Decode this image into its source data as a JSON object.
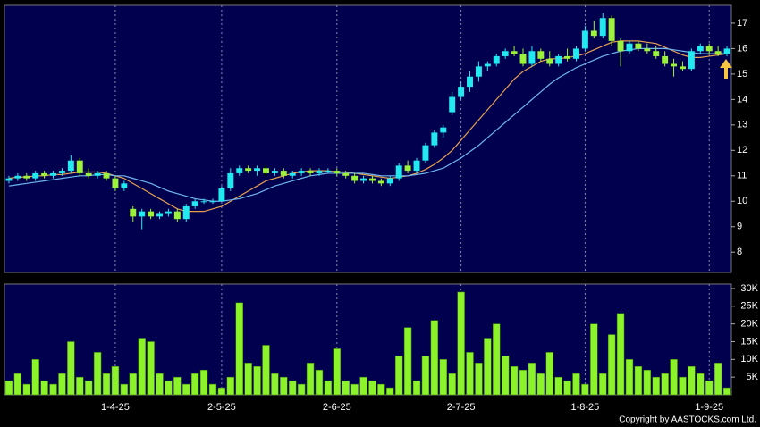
{
  "chart_data": [
    {
      "type": "candlestick",
      "categories": [
        null,
        null,
        null,
        null,
        null,
        null,
        null,
        null,
        null,
        null,
        null,
        null,
        "1-4-25",
        null,
        null,
        null,
        null,
        null,
        null,
        null,
        null,
        null,
        null,
        null,
        "2-5-25",
        null,
        null,
        null,
        null,
        null,
        null,
        null,
        null,
        null,
        null,
        null,
        null,
        "2-6-25",
        null,
        null,
        null,
        null,
        null,
        null,
        null,
        null,
        null,
        null,
        null,
        null,
        null,
        "2-7-25",
        null,
        null,
        null,
        null,
        null,
        null,
        null,
        null,
        null,
        null,
        null,
        null,
        null,
        "1-8-25",
        null,
        null,
        null,
        null,
        null,
        null,
        null,
        null,
        null,
        null,
        null,
        null,
        null,
        "1-9-25",
        null,
        null
      ],
      "open": [
        10.8,
        10.9,
        11.0,
        10.9,
        11.1,
        11.0,
        11.1,
        11.2,
        11.6,
        11.1,
        11.0,
        11.1,
        10.9,
        10.5,
        9.7,
        9.4,
        9.6,
        9.4,
        9.5,
        9.6,
        9.3,
        9.8,
        10.0,
        10.0,
        10.0,
        10.5,
        11.1,
        11.3,
        11.2,
        11.3,
        11.1,
        11.2,
        11.0,
        11.1,
        11.2,
        11.1,
        11.2,
        11.2,
        11.1,
        11.0,
        10.8,
        10.9,
        10.8,
        10.7,
        10.9,
        11.4,
        11.2,
        11.6,
        12.2,
        12.7,
        13.5,
        14.1,
        14.5,
        14.9,
        15.3,
        15.4,
        15.7,
        15.9,
        15.8,
        15.4,
        15.9,
        15.6,
        15.4,
        15.7,
        15.6,
        16.0,
        16.7,
        16.5,
        17.2,
        16.3,
        15.9,
        16.2,
        16.0,
        15.9,
        15.7,
        15.4,
        15.3,
        15.2,
        15.9,
        16.1,
        15.9,
        15.8
      ],
      "high": [
        11.0,
        11.1,
        11.1,
        11.2,
        11.2,
        11.2,
        11.3,
        11.8,
        11.7,
        11.3,
        11.2,
        11.2,
        11.0,
        10.8,
        9.8,
        9.7,
        9.7,
        9.6,
        9.7,
        9.7,
        9.9,
        10.1,
        10.1,
        10.1,
        10.6,
        11.3,
        11.4,
        11.4,
        11.4,
        11.4,
        11.3,
        11.3,
        11.2,
        11.3,
        11.3,
        11.3,
        11.3,
        11.3,
        11.2,
        11.1,
        11.0,
        11.0,
        10.9,
        11.0,
        11.5,
        11.6,
        11.7,
        12.3,
        12.8,
        13.0,
        14.3,
        14.7,
        15.1,
        15.5,
        15.5,
        15.8,
        16.0,
        16.1,
        16.0,
        16.1,
        16.0,
        15.9,
        15.8,
        16.0,
        16.1,
        16.9,
        17.1,
        17.4,
        17.3,
        16.4,
        16.3,
        16.3,
        16.2,
        16.1,
        15.9,
        15.6,
        15.5,
        16.0,
        16.2,
        16.2,
        16.1,
        16.1
      ],
      "low": [
        10.7,
        10.8,
        10.8,
        10.8,
        10.9,
        10.9,
        11.0,
        11.1,
        11.0,
        10.9,
        10.9,
        10.8,
        10.4,
        10.4,
        9.2,
        8.9,
        9.3,
        9.3,
        9.4,
        9.2,
        9.2,
        9.7,
        9.9,
        9.9,
        10.0,
        10.4,
        11.0,
        11.1,
        11.0,
        11.0,
        11.0,
        10.9,
        10.9,
        11.0,
        11.0,
        11.0,
        11.1,
        11.0,
        10.9,
        10.7,
        10.7,
        10.7,
        10.6,
        10.6,
        10.8,
        11.1,
        11.1,
        11.5,
        12.1,
        12.5,
        13.4,
        14.0,
        14.3,
        14.7,
        15.1,
        15.3,
        15.6,
        15.7,
        15.3,
        15.3,
        15.5,
        15.3,
        15.3,
        15.5,
        15.5,
        15.9,
        16.4,
        16.4,
        16.1,
        15.3,
        15.8,
        15.9,
        15.8,
        15.6,
        15.3,
        14.9,
        15.1,
        15.1,
        15.8,
        15.8,
        15.7,
        15.7
      ],
      "close": [
        10.9,
        11.0,
        10.9,
        11.1,
        11.0,
        11.1,
        11.2,
        11.6,
        11.1,
        11.0,
        11.1,
        10.9,
        10.5,
        10.7,
        9.4,
        9.6,
        9.4,
        9.5,
        9.6,
        9.3,
        9.8,
        10.0,
        10.0,
        10.0,
        10.5,
        11.1,
        11.3,
        11.2,
        11.3,
        11.1,
        11.2,
        11.0,
        11.1,
        11.2,
        11.1,
        11.2,
        11.2,
        11.1,
        11.0,
        10.8,
        10.9,
        10.8,
        10.7,
        10.9,
        11.4,
        11.2,
        11.6,
        12.2,
        12.7,
        12.9,
        14.1,
        14.5,
        14.9,
        15.3,
        15.4,
        15.7,
        15.9,
        15.8,
        15.4,
        15.9,
        15.6,
        15.4,
        15.7,
        15.6,
        16.0,
        16.7,
        16.5,
        17.2,
        16.3,
        15.9,
        16.2,
        16.0,
        15.9,
        15.7,
        15.4,
        15.3,
        15.2,
        15.9,
        16.1,
        15.9,
        15.8,
        16.0
      ],
      "up_color": "#22e8f0",
      "down_color": "#9cf23a",
      "series": [
        {
          "color": "#e8a050",
          "values": [
            10.9,
            10.95,
            10.95,
            11.0,
            11.0,
            11.05,
            11.05,
            11.1,
            11.15,
            11.15,
            11.15,
            11.1,
            11.0,
            10.9,
            10.7,
            10.5,
            10.3,
            10.1,
            9.9,
            9.7,
            9.6,
            9.6,
            9.6,
            9.7,
            9.8,
            10.0,
            10.2,
            10.4,
            10.6,
            10.8,
            10.9,
            11.0,
            11.1,
            11.15,
            11.2,
            11.2,
            11.2,
            11.15,
            11.15,
            11.1,
            11.05,
            11.0,
            10.95,
            10.9,
            10.95,
            11.0,
            11.1,
            11.25,
            11.45,
            11.7,
            12.0,
            12.4,
            12.8,
            13.2,
            13.6,
            14.0,
            14.4,
            14.8,
            15.1,
            15.3,
            15.5,
            15.6,
            15.6,
            15.65,
            15.7,
            15.8,
            15.95,
            16.1,
            16.25,
            16.3,
            16.3,
            16.3,
            16.25,
            16.2,
            16.05,
            15.9,
            15.75,
            15.65,
            15.65,
            15.7,
            15.75,
            15.8
          ]
        },
        {
          "color": "#6fb6f0",
          "values": [
            10.6,
            10.65,
            10.7,
            10.75,
            10.8,
            10.85,
            10.9,
            10.95,
            11.0,
            11.0,
            11.05,
            11.05,
            11.0,
            11.0,
            10.9,
            10.8,
            10.7,
            10.55,
            10.4,
            10.3,
            10.2,
            10.1,
            10.05,
            10.0,
            10.0,
            10.05,
            10.1,
            10.2,
            10.3,
            10.45,
            10.6,
            10.7,
            10.8,
            10.9,
            11.0,
            11.05,
            11.1,
            11.1,
            11.1,
            11.1,
            11.1,
            11.05,
            11.0,
            11.0,
            11.0,
            11.0,
            11.05,
            11.1,
            11.2,
            11.3,
            11.5,
            11.7,
            11.95,
            12.2,
            12.5,
            12.8,
            13.1,
            13.4,
            13.7,
            14.0,
            14.3,
            14.6,
            14.85,
            15.05,
            15.25,
            15.4,
            15.55,
            15.7,
            15.8,
            15.9,
            15.95,
            16.0,
            16.0,
            16.0,
            16.0,
            15.95,
            15.9,
            15.85,
            15.8,
            15.8,
            15.8,
            15.8
          ]
        }
      ],
      "ylim": [
        7.2,
        17.7
      ],
      "yticks": [
        8,
        9,
        10,
        11,
        12,
        13,
        14,
        15,
        16,
        17
      ]
    },
    {
      "type": "bar",
      "color": "#8cf22a",
      "values": [
        4000,
        6000,
        3000,
        10000,
        4000,
        3000,
        6000,
        15000,
        5000,
        4000,
        12000,
        6000,
        8000,
        3000,
        6000,
        16000,
        15000,
        6000,
        4000,
        5000,
        3000,
        6000,
        7000,
        3000,
        2000,
        5000,
        26000,
        9000,
        8000,
        14000,
        6000,
        5000,
        4000,
        3000,
        9000,
        7000,
        4000,
        13000,
        4000,
        3000,
        5000,
        4000,
        3000,
        2000,
        11000,
        19000,
        4000,
        11000,
        21000,
        10000,
        6000,
        29000,
        12000,
        9000,
        16000,
        20000,
        11000,
        8000,
        7000,
        9000,
        6000,
        12000,
        5000,
        4000,
        6000,
        3000,
        20000,
        6000,
        17000,
        23000,
        10000,
        8000,
        7000,
        5000,
        6000,
        10000,
        5000,
        8000,
        6000,
        4000,
        9000,
        2000
      ],
      "ylim": [
        0,
        31250
      ],
      "yticks": [
        {
          "value": 5000,
          "label": "5K"
        },
        {
          "value": 10000,
          "label": "10K"
        },
        {
          "value": 15000,
          "label": "15K"
        },
        {
          "value": 20000,
          "label": "20K"
        },
        {
          "value": 25000,
          "label": "25K"
        },
        {
          "value": 30000,
          "label": "30K"
        }
      ]
    }
  ],
  "footer": "Copyright by AASTOCKS.com Ltd."
}
